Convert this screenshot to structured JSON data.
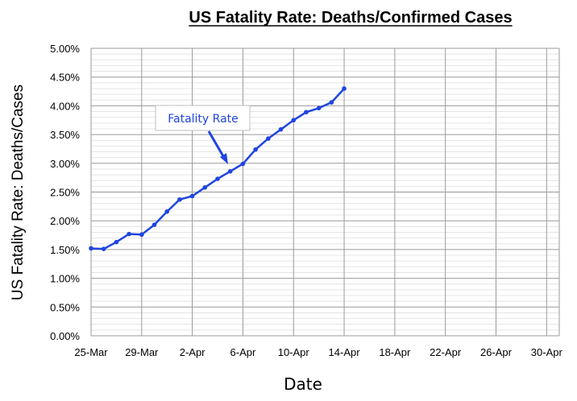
{
  "chart_data": {
    "type": "line",
    "title": "US Fatality Rate: Deaths/Confirmed Cases",
    "xlabel": "Date",
    "ylabel": "US Fatality Rate: Deaths/Cases",
    "x_tick_labels": [
      "25-Mar",
      "29-Mar",
      "2-Apr",
      "6-Apr",
      "10-Apr",
      "14-Apr",
      "18-Apr",
      "22-Apr",
      "26-Apr",
      "30-Apr"
    ],
    "y_tick_labels": [
      "0.00%",
      "0.50%",
      "1.00%",
      "1.50%",
      "2.00%",
      "2.50%",
      "3.00%",
      "3.50%",
      "4.00%",
      "4.50%",
      "5.00%"
    ],
    "ylim": [
      0,
      0.05
    ],
    "xlim": [
      "25-Mar",
      "1-May"
    ],
    "grid": true,
    "series": [
      {
        "name": "Fatality Rate",
        "color": "#1f45e0",
        "marker": "circle",
        "x": [
          "25-Mar",
          "26-Mar",
          "27-Mar",
          "28-Mar",
          "29-Mar",
          "30-Mar",
          "31-Mar",
          "1-Apr",
          "2-Apr",
          "3-Apr",
          "4-Apr",
          "5-Apr",
          "6-Apr",
          "7-Apr",
          "8-Apr",
          "9-Apr",
          "10-Apr",
          "11-Apr",
          "12-Apr",
          "13-Apr",
          "14-Apr"
        ],
        "values": [
          0.0152,
          0.0151,
          0.0163,
          0.0177,
          0.0176,
          0.0193,
          0.0216,
          0.0237,
          0.0243,
          0.0258,
          0.0273,
          0.0286,
          0.0299,
          0.0324,
          0.0343,
          0.0359,
          0.0375,
          0.0389,
          0.0396,
          0.0406,
          0.043
        ]
      }
    ],
    "annotations": [
      {
        "text": "Fatality Rate",
        "color": "#1f45e0",
        "arrow_to": {
          "x": "4-Apr",
          "y": 0.0285
        }
      }
    ]
  }
}
